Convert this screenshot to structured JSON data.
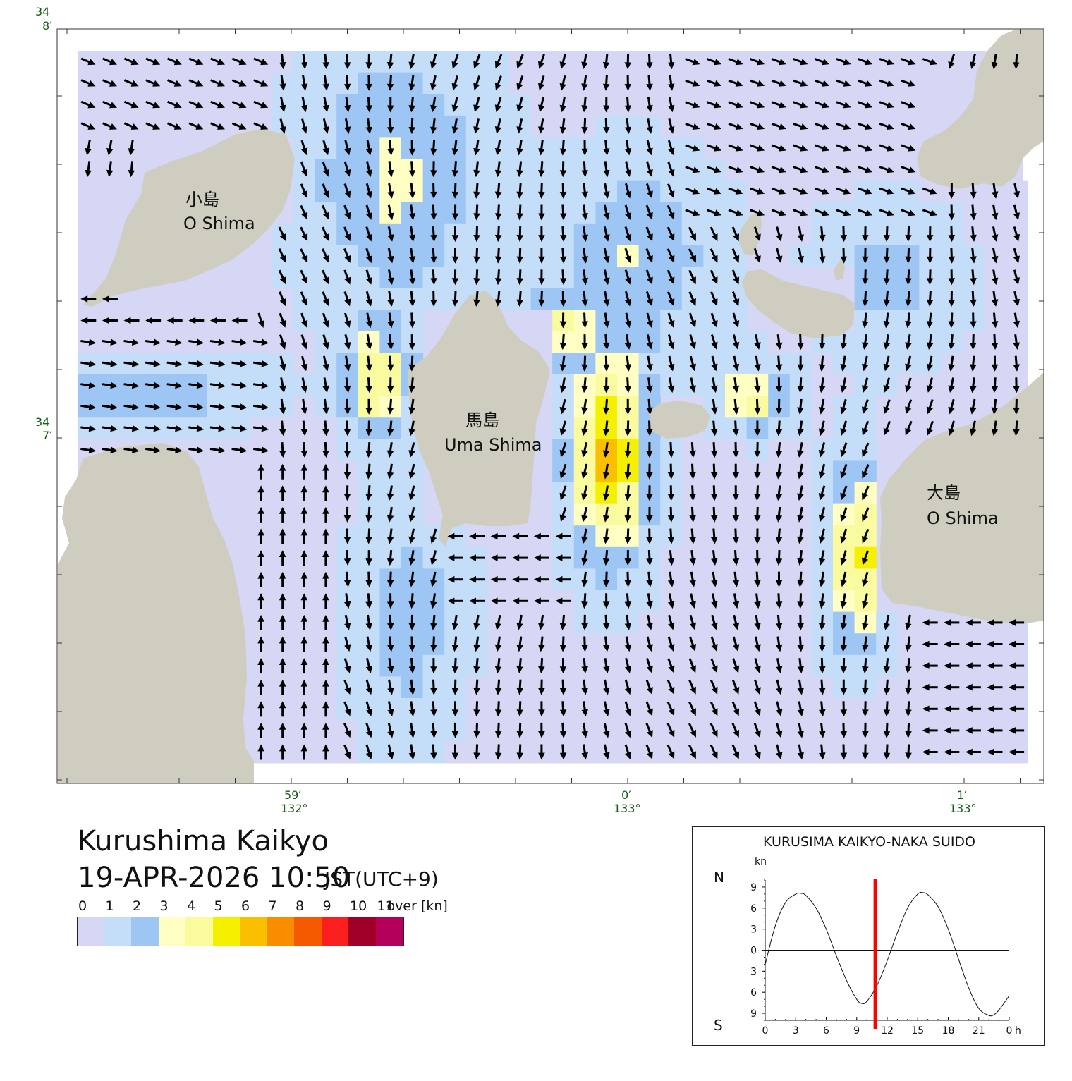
{
  "map": {
    "title_place": "Kurushima Kaikyo",
    "title_datetime": "19-APR-2026 10:50",
    "title_timezone": "JST(UTC+9)",
    "lat_labels": [
      {
        "deg": "34",
        "min": "8′"
      },
      {
        "deg": "34",
        "min": "7′"
      }
    ],
    "lon_labels": [
      {
        "min": "59′",
        "deg": "132°"
      },
      {
        "min": "0′",
        "deg": "133°"
      },
      {
        "min": "1′",
        "deg": "133°"
      }
    ],
    "islands": [
      {
        "name_jp": "小島",
        "name_en": "O Shima",
        "icon": "island-kojima"
      },
      {
        "name_jp": "馬島",
        "name_en": "Uma Shima",
        "icon": "island-umashima"
      },
      {
        "name_jp": "大島",
        "name_en": "O Shima",
        "icon": "island-oshima"
      }
    ],
    "land_color": "#cfcdbf",
    "water_color": "#d6d6f5",
    "arrow_color": "#000000"
  },
  "legend": {
    "labels": [
      "0",
      "1",
      "2",
      "3",
      "4",
      "5",
      "6",
      "7",
      "8",
      "9",
      "10",
      "11"
    ],
    "over_label": "over [kn]",
    "colors": [
      "#d6d6f5",
      "#c4defa",
      "#9ec6f5",
      "#ffffc4",
      "#fafa9e",
      "#f5f000",
      "#fac000",
      "#fa8c00",
      "#f55a00",
      "#fa1e1e",
      "#a00028",
      "#b4005a"
    ]
  },
  "tide_panel": {
    "title": "KURUSIMA KAIKYO-NAKA SUIDO",
    "unit": "kn",
    "north_label": "N",
    "south_label": "S",
    "y_tick_labels": [
      "9",
      "6",
      "3",
      "0",
      "3",
      "6",
      "9"
    ],
    "x_tick_labels": [
      "0",
      "3",
      "6",
      "9",
      "12",
      "15",
      "18",
      "21",
      "0"
    ],
    "x_unit": "h",
    "current_time_color": "#ff0000"
  },
  "chart_data": {
    "type": "line",
    "title": "KURUSIMA KAIKYO-NAKA SUIDO",
    "xlabel": "h",
    "ylabel": "kn",
    "xlim": [
      0,
      24
    ],
    "ylim": [
      -10,
      10
    ],
    "x": [
      0,
      1,
      2,
      3,
      3.5,
      4,
      5,
      6,
      7,
      8,
      9,
      9.5,
      10,
      11,
      12,
      13,
      14,
      15,
      15.5,
      16,
      17,
      18,
      19,
      20,
      21,
      22,
      22.5,
      23,
      24
    ],
    "series": [
      {
        "values": [
          -2,
          3.5,
          6.8,
          8.0,
          8.1,
          7.8,
          6.0,
          3.0,
          -0.8,
          -4.3,
          -7.0,
          -7.6,
          -7.3,
          -5.0,
          -1.5,
          2.5,
          6.0,
          8.0,
          8.2,
          7.9,
          6.2,
          3.0,
          -1.2,
          -5.3,
          -8.3,
          -9.3,
          -9.2,
          -8.5,
          -6.5
        ]
      }
    ],
    "current_time": 10.83,
    "grid": false
  }
}
